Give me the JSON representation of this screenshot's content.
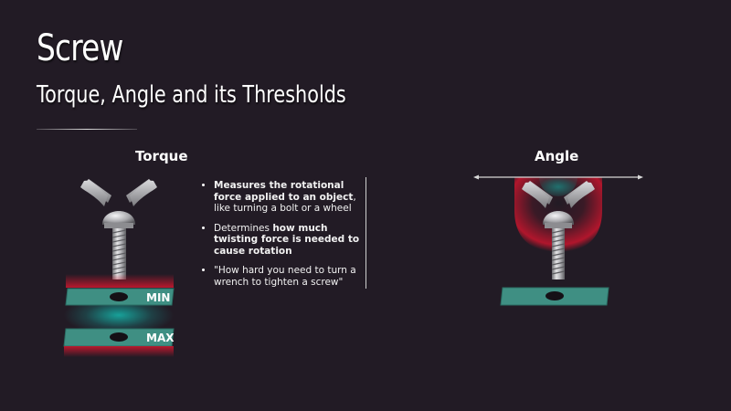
{
  "slide": {
    "title": "Screw",
    "subtitle": "Torque, Angle and its Thresholds"
  },
  "torque": {
    "heading": "Torque",
    "min_label": "MIN",
    "max_label": "MAX",
    "bullets": [
      {
        "bold": "Measures the rotational force applied to an object",
        "after": ", like turning a bolt or a wheel",
        "before": ""
      },
      {
        "before": "Determines ",
        "bold": "how much twisting force is needed to cause rotation",
        "after": ""
      },
      {
        "before": "\"How hard you need to turn a wrench to tighten a screw\"",
        "bold": "",
        "after": ""
      }
    ]
  },
  "angle": {
    "heading": "Angle"
  },
  "colors": {
    "background": "#221b25",
    "plate": "#3f8f83",
    "threshold_red": "#c2182e",
    "glow_teal": "#16b0a6"
  }
}
